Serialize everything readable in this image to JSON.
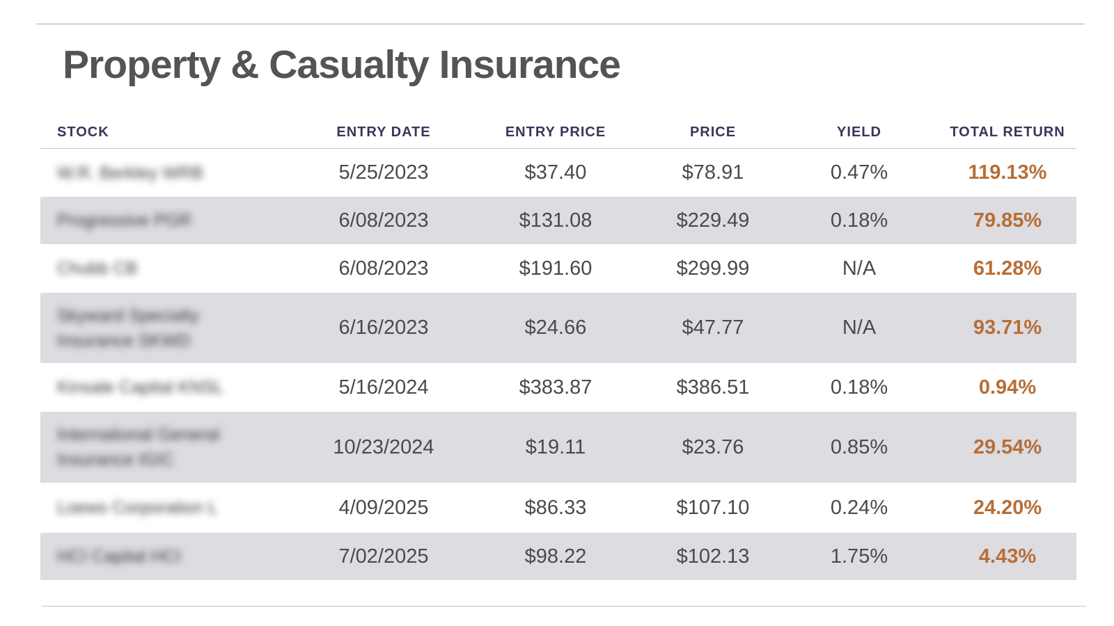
{
  "title": "Property & Casualty Insurance",
  "columns": {
    "stock": "STOCK",
    "entry_date": "ENTRY DATE",
    "entry_price": "ENTRY PRICE",
    "price": "PRICE",
    "yield": "YIELD",
    "total_return": "TOTAL RETURN"
  },
  "rows": [
    {
      "stock": "W.R. Berkley WRB",
      "entry_date": "5/25/2023",
      "entry_price": "$37.40",
      "price": "$78.91",
      "yield": "0.47%",
      "total_return": "119.13%"
    },
    {
      "stock": "Progressive PGR",
      "entry_date": "6/08/2023",
      "entry_price": "$131.08",
      "price": "$229.49",
      "yield": "0.18%",
      "total_return": "79.85%"
    },
    {
      "stock": "Chubb CB",
      "entry_date": "6/08/2023",
      "entry_price": "$191.60",
      "price": "$299.99",
      "yield": "N/A",
      "total_return": "61.28%"
    },
    {
      "stock": "Skyward Specialty Insurance SKWD",
      "entry_date": "6/16/2023",
      "entry_price": "$24.66",
      "price": "$47.77",
      "yield": "N/A",
      "total_return": "93.71%"
    },
    {
      "stock": "Kinsale Capital KNSL",
      "entry_date": "5/16/2024",
      "entry_price": "$383.87",
      "price": "$386.51",
      "yield": "0.18%",
      "total_return": "0.94%"
    },
    {
      "stock": "International General Insurance IGIC",
      "entry_date": "10/23/2024",
      "entry_price": "$19.11",
      "price": "$23.76",
      "yield": "0.85%",
      "total_return": "29.54%"
    },
    {
      "stock": "Loews Corporation L",
      "entry_date": "4/09/2025",
      "entry_price": "$86.33",
      "price": "$107.10",
      "yield": "0.24%",
      "total_return": "24.20%"
    },
    {
      "stock": "HCI Capital HCI",
      "entry_date": "7/02/2025",
      "entry_price": "$98.22",
      "price": "$102.13",
      "yield": "1.75%",
      "total_return": "4.43%"
    }
  ]
}
